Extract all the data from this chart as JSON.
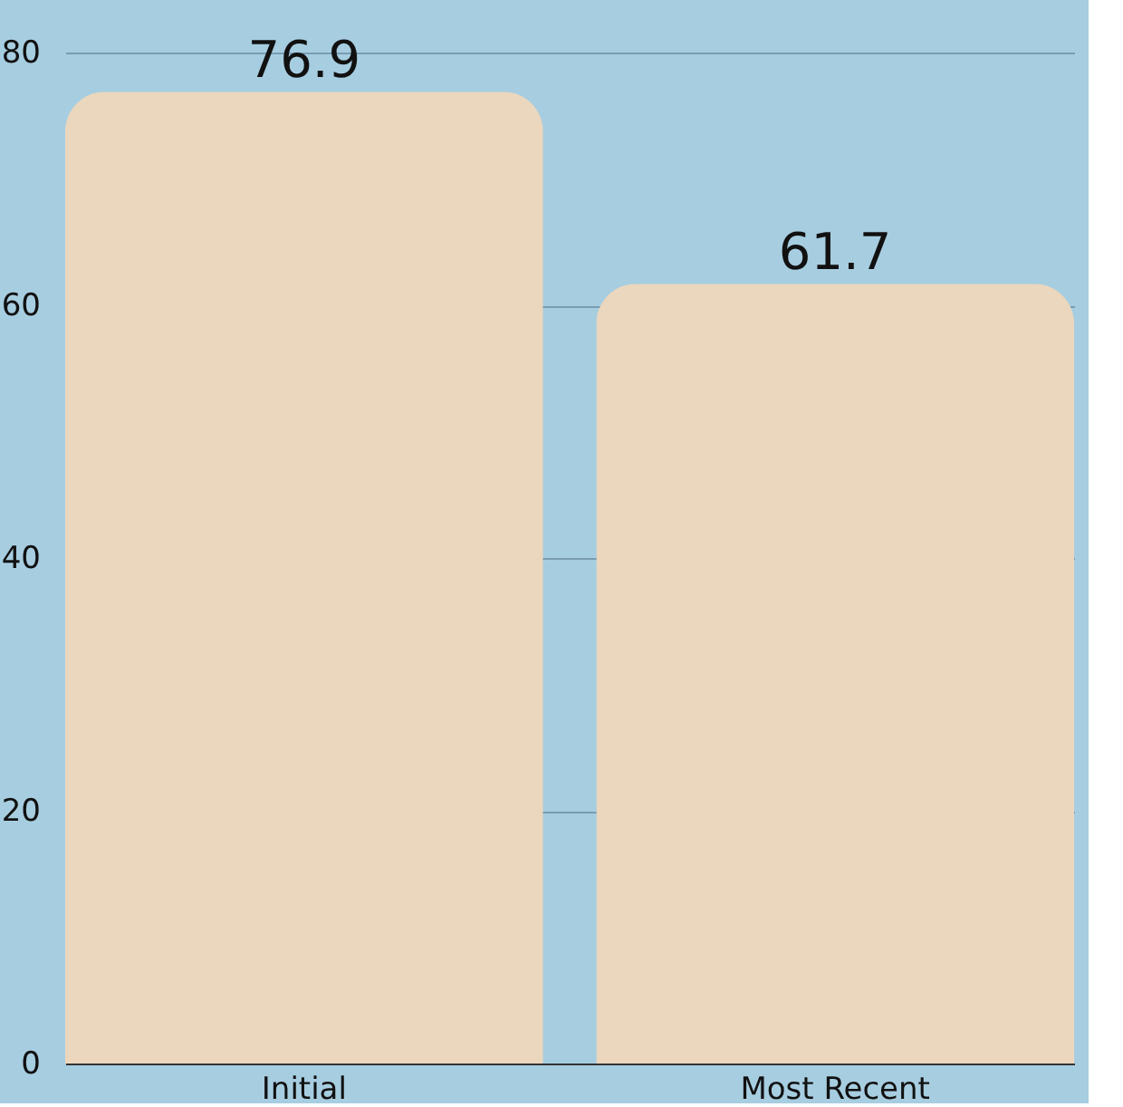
{
  "chart_data": {
    "type": "bar",
    "categories": [
      "Initial",
      "Most Recent"
    ],
    "values": [
      76.9,
      61.7
    ],
    "color": "#ebd7bd",
    "ylim": [
      0,
      80
    ],
    "yticks": [
      0,
      20,
      40,
      60,
      80
    ],
    "grid": "y",
    "data_labels": true
  }
}
